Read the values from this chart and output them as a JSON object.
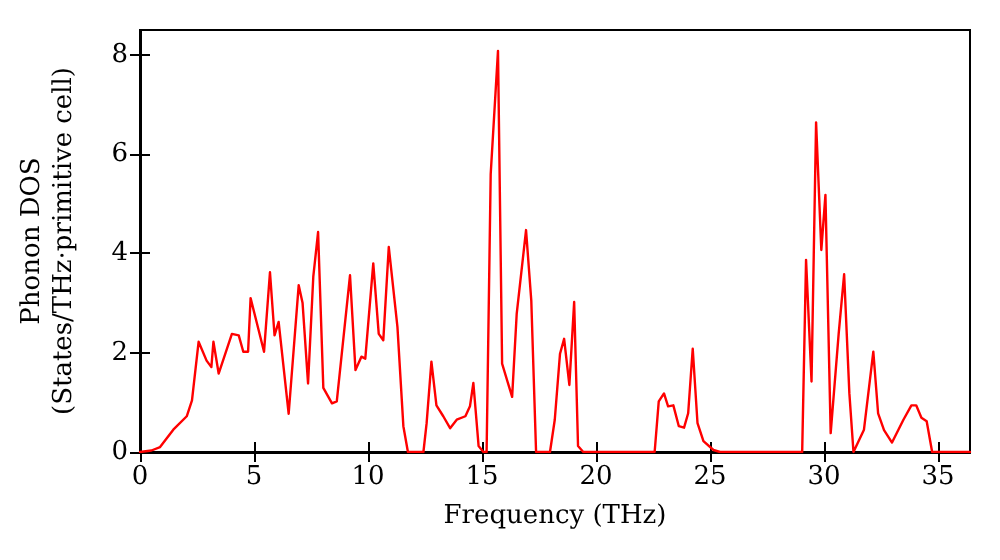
{
  "chart_data": {
    "type": "line",
    "xlabel": "Frequency (THz)",
    "ylabel": "Phonon DOS\n(States/THz·primitive cell)",
    "x": [
      0,
      0.5,
      0.88,
      1.46,
      2.05,
      2.28,
      2.57,
      2.92,
      3.13,
      3.22,
      3.45,
      4.03,
      4.33,
      4.53,
      4.74,
      4.85,
      5.44,
      5.7,
      5.9,
      6.08,
      6.52,
      6.96,
      7.13,
      7.37,
      7.6,
      7.81,
      8.04,
      8.42,
      8.63,
      9.21,
      9.45,
      9.71,
      9.88,
      10.23,
      10.47,
      10.67,
      10.91,
      11.29,
      11.55,
      11.75,
      12.43,
      12.57,
      12.78,
      13.0,
      13.3,
      13.6,
      13.89,
      14.27,
      14.47,
      14.62,
      14.85,
      15.06,
      15.2,
      15.38,
      15.7,
      15.88,
      16.32,
      16.52,
      16.93,
      17.16,
      17.37,
      17.98,
      18.19,
      18.42,
      18.6,
      18.83,
      19.04,
      19.21,
      19.44,
      22.57,
      22.75,
      22.98,
      23.16,
      23.39,
      23.63,
      23.86,
      24.04,
      24.24,
      24.45,
      24.71,
      25.15,
      25.44,
      29.04,
      29.21,
      29.45,
      29.65,
      29.88,
      30.06,
      30.29,
      30.64,
      30.88,
      31.11,
      31.29,
      31.75,
      32.16,
      32.37,
      32.63,
      32.98,
      33.48,
      33.83,
      34.04,
      34.27,
      34.5,
      34.74,
      36.4
    ],
    "series": [
      {
        "color": "#ff0000",
        "values": [
          0,
          0.03,
          0.1,
          0.45,
          0.72,
          1.04,
          2.22,
          1.84,
          1.71,
          2.22,
          1.58,
          2.38,
          2.35,
          2.02,
          2.02,
          3.1,
          2.02,
          3.62,
          2.35,
          2.62,
          0.77,
          3.36,
          3.0,
          1.38,
          3.53,
          4.43,
          1.29,
          0.98,
          1.02,
          3.56,
          1.65,
          1.92,
          1.88,
          3.8,
          2.38,
          2.25,
          4.13,
          2.52,
          0.52,
          0,
          0,
          0.58,
          1.82,
          0.94,
          0.72,
          0.48,
          0.65,
          0.72,
          0.92,
          1.39,
          0.12,
          0,
          0,
          5.6,
          8.08,
          1.78,
          1.11,
          2.78,
          4.47,
          3.05,
          0,
          0,
          0.65,
          1.98,
          2.28,
          1.35,
          3.02,
          0.12,
          0,
          0,
          1.02,
          1.18,
          0.92,
          0.94,
          0.52,
          0.49,
          0.78,
          2.08,
          0.58,
          0.22,
          0.04,
          0,
          0,
          3.87,
          1.42,
          6.64,
          4.07,
          5.18,
          0.38,
          2.38,
          3.58,
          1.18,
          0,
          0.45,
          2.02,
          0.78,
          0.44,
          0.19,
          0.65,
          0.94,
          0.94,
          0.69,
          0.62,
          0,
          0
        ]
      }
    ],
    "xlim": [
      0,
      36.4
    ],
    "xticks": [
      0,
      5,
      10,
      15,
      20,
      25,
      30,
      35
    ],
    "ylim": [
      0,
      8.5
    ],
    "yticks": [
      0,
      2,
      4,
      6,
      8
    ],
    "marker": "none",
    "line_style": "solid"
  }
}
